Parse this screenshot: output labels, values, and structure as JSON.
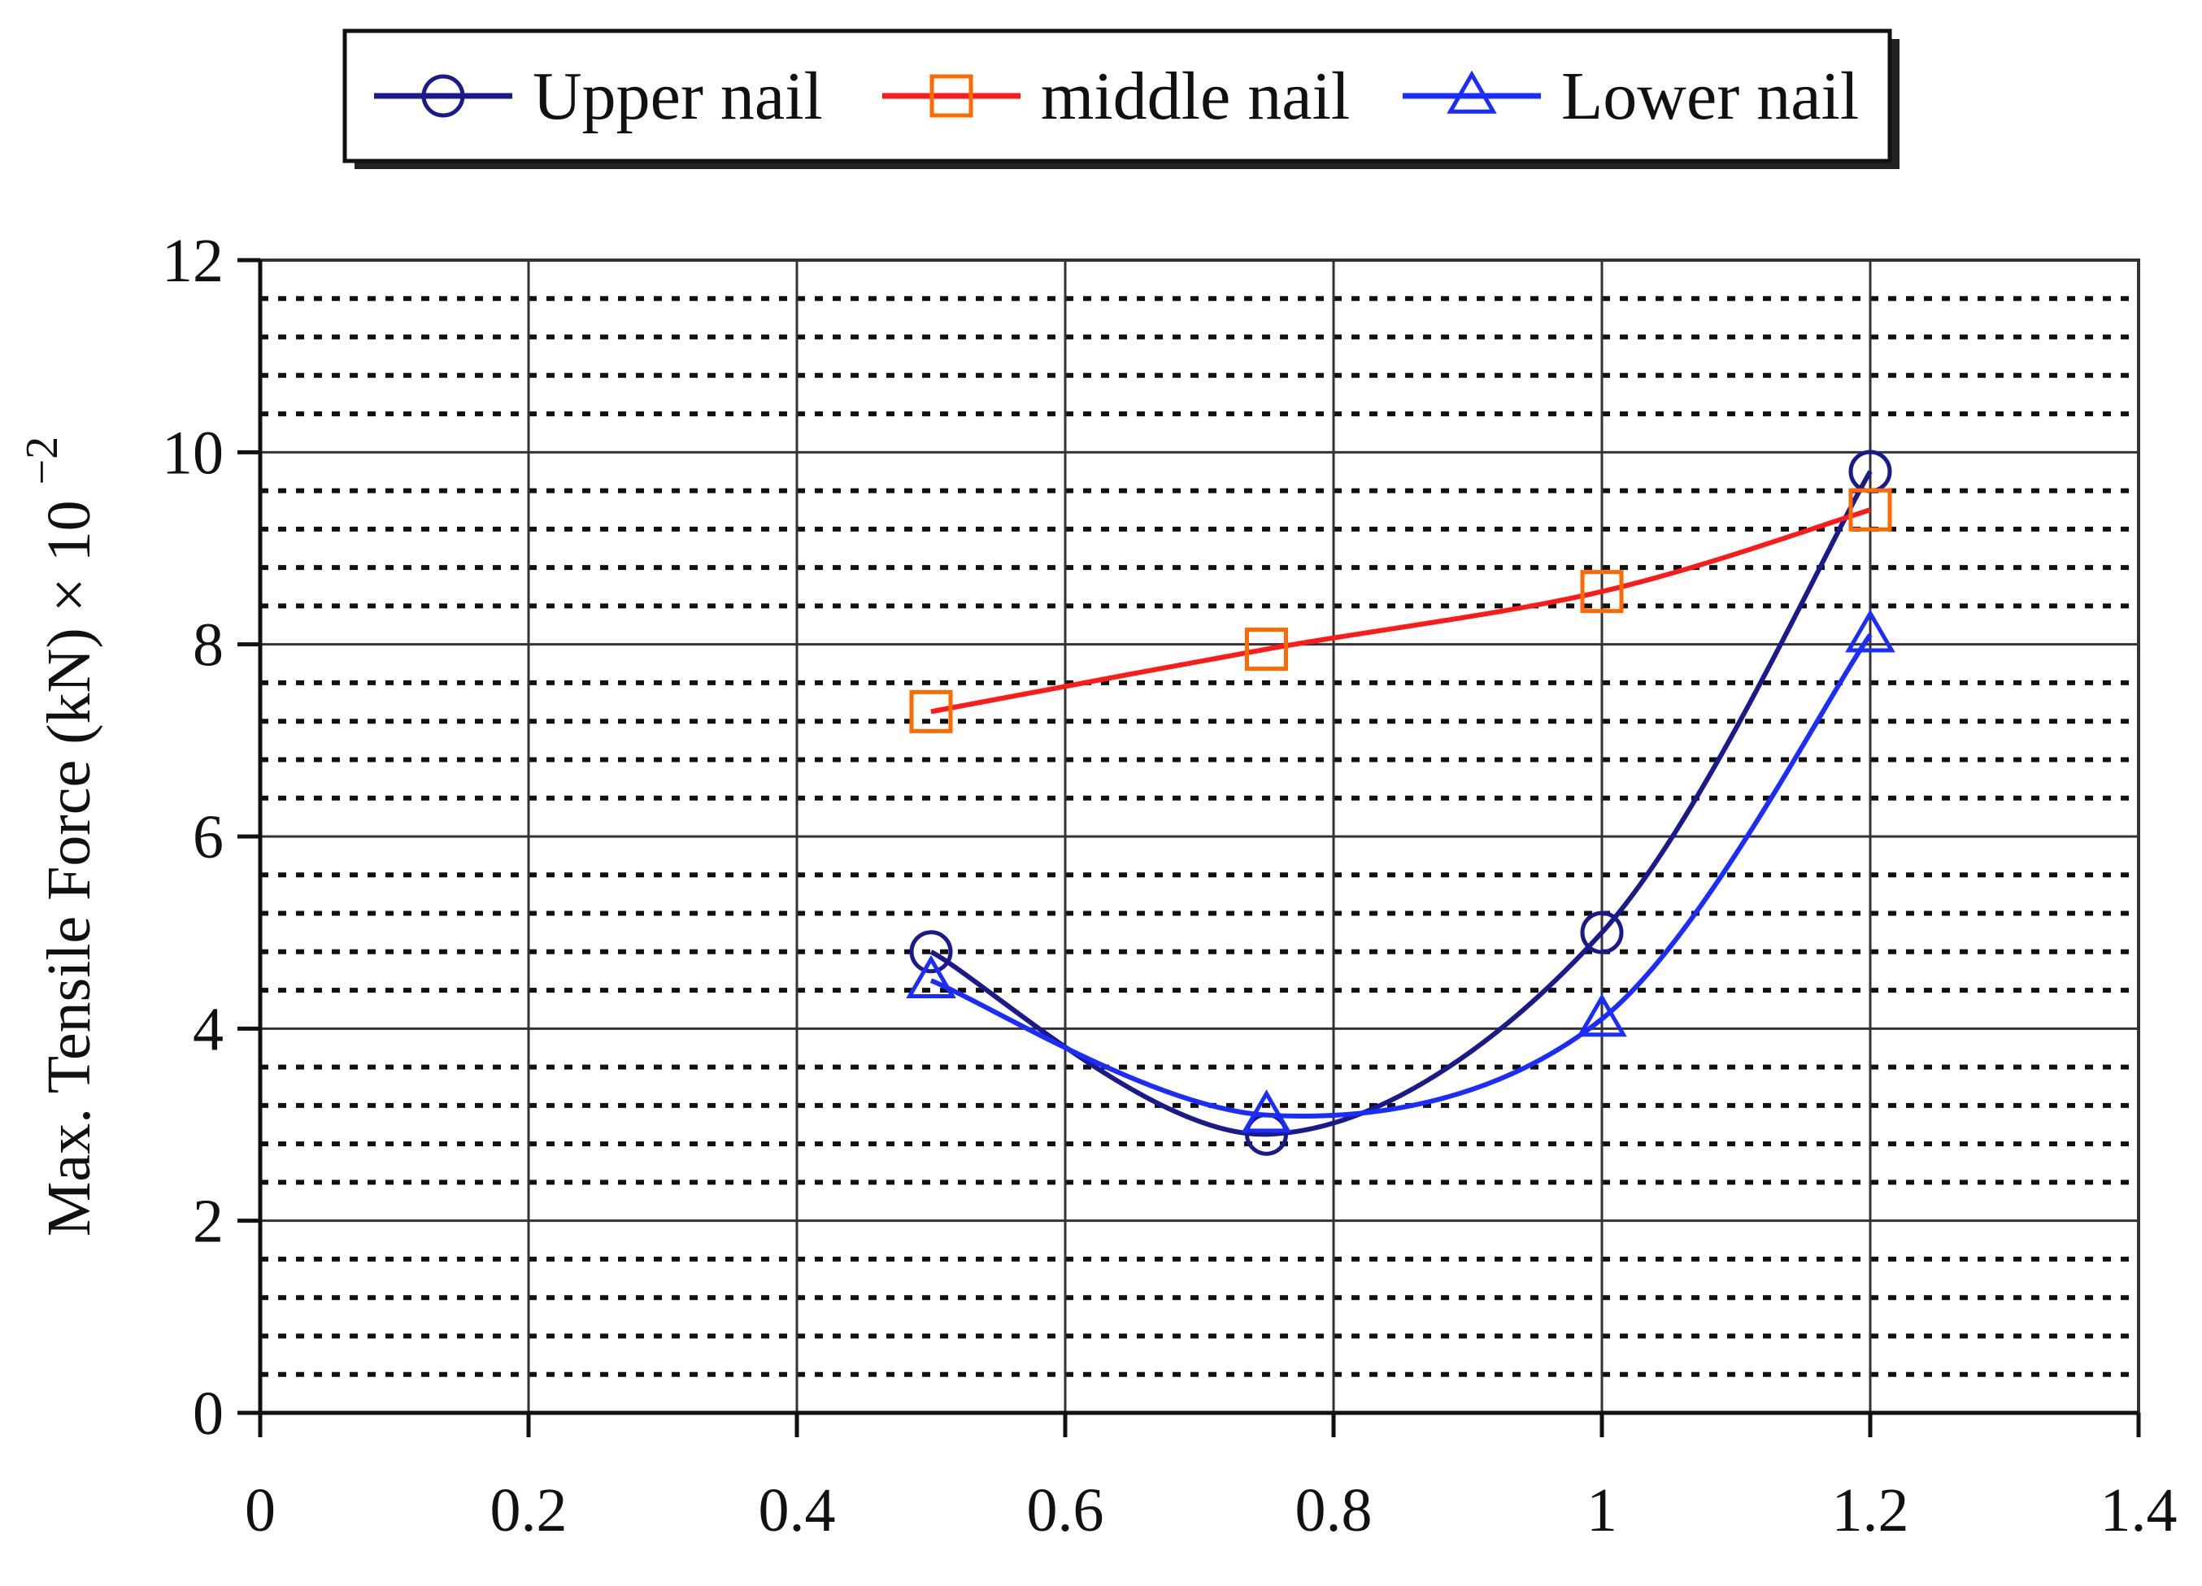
{
  "chart_data": {
    "type": "line",
    "title": "",
    "xlabel": "",
    "ylabel": "Max. Tensile Force (kN) × 10",
    "ylabel_superscript": "−2",
    "xlim": [
      0,
      1.4
    ],
    "ylim": [
      0,
      12
    ],
    "x_ticks": [
      "0",
      "0.2",
      "0.4",
      "0.6",
      "0.8",
      "1",
      "1.2",
      "1.4"
    ],
    "y_ticks": [
      "0",
      "2",
      "4",
      "6",
      "8",
      "10",
      "12"
    ],
    "grid": {
      "major": true,
      "minor_dotted_horizontal": true
    },
    "legend": {
      "placement": "top-center"
    },
    "series": [
      {
        "name": "Upper nail",
        "marker": "circle",
        "color": "#1a1a8c",
        "points": [
          {
            "x": 0.5,
            "y": 4.8
          },
          {
            "x": 0.75,
            "y": 2.9
          },
          {
            "x": 1.0,
            "y": 5.0
          },
          {
            "x": 1.2,
            "y": 9.8
          }
        ]
      },
      {
        "name": "middle nail",
        "marker": "square",
        "color": "#ff1a1a",
        "marker_color": "#ff6a00",
        "points": [
          {
            "x": 0.5,
            "y": 7.3
          },
          {
            "x": 0.75,
            "y": 7.95
          },
          {
            "x": 1.0,
            "y": 8.55
          },
          {
            "x": 1.2,
            "y": 9.4
          }
        ]
      },
      {
        "name": "Lower nail",
        "marker": "triangle",
        "color": "#1a2cff",
        "points": [
          {
            "x": 0.5,
            "y": 4.5
          },
          {
            "x": 0.75,
            "y": 3.1
          },
          {
            "x": 1.0,
            "y": 4.1
          },
          {
            "x": 1.2,
            "y": 8.1
          }
        ]
      }
    ]
  }
}
